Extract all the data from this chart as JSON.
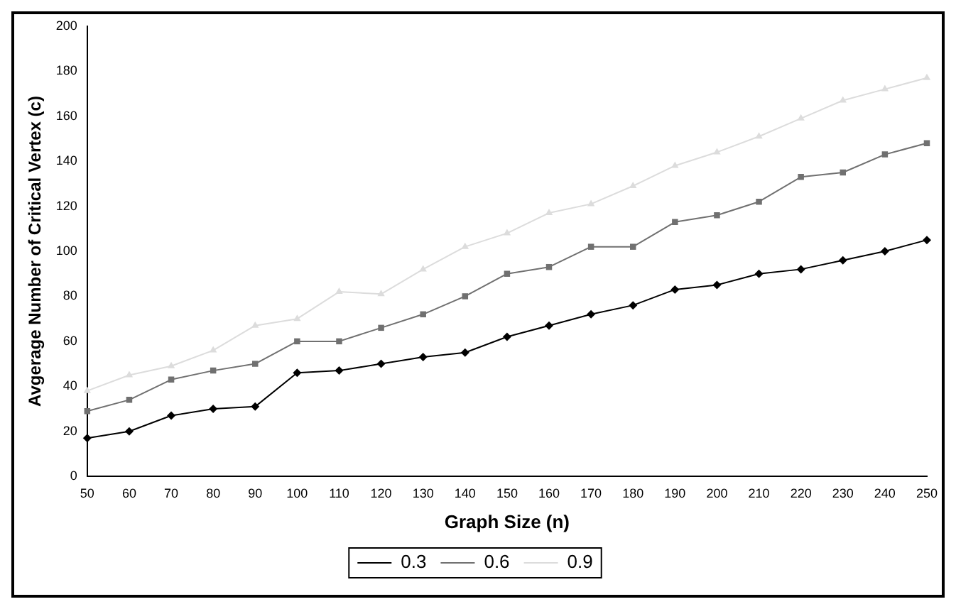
{
  "chart_data": {
    "type": "line",
    "xlabel": "Graph Size (n)",
    "ylabel": "Avgerage Number of Critical Vertex (c)",
    "categories": [
      "50",
      "60",
      "70",
      "80",
      "90",
      "100",
      "110",
      "120",
      "130",
      "140",
      "150",
      "160",
      "170",
      "180",
      "190",
      "200",
      "210",
      "220",
      "230",
      "240",
      "250"
    ],
    "series": [
      {
        "name": "0.3",
        "color": "#000000",
        "marker": "diamond",
        "values": [
          17,
          20,
          27,
          30,
          31,
          46,
          47,
          50,
          53,
          55,
          62,
          67,
          72,
          76,
          83,
          85,
          90,
          92,
          96,
          100,
          105
        ]
      },
      {
        "name": "0.6",
        "color": "#707070",
        "marker": "square",
        "values": [
          29,
          34,
          43,
          47,
          50,
          60,
          60,
          66,
          72,
          80,
          90,
          93,
          102,
          102,
          113,
          116,
          122,
          133,
          135,
          143,
          148
        ]
      },
      {
        "name": "0.9",
        "color": "#dcdcdc",
        "marker": "triangle",
        "values": [
          38,
          45,
          49,
          56,
          67,
          70,
          82,
          81,
          92,
          102,
          108,
          117,
          121,
          129,
          138,
          144,
          151,
          159,
          167,
          172,
          177
        ]
      }
    ],
    "ylim": [
      0,
      200
    ],
    "yticks": [
      0,
      20,
      40,
      60,
      80,
      100,
      120,
      140,
      160,
      180,
      200
    ],
    "grid": false,
    "legend": "bottom",
    "line_style": "solid"
  }
}
